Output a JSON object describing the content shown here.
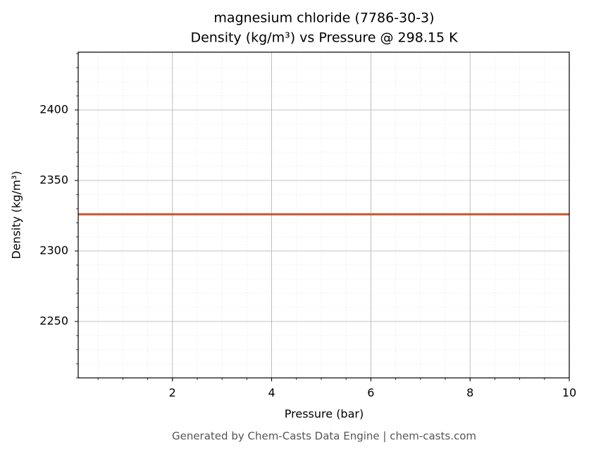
{
  "chart_data": {
    "type": "line",
    "title": "magnesium chloride (7786-30-3)",
    "subtitle": "Density (kg/m³) vs Pressure @ 298.15 K",
    "x_label": "Pressure (bar)",
    "y_label": "Density (kg/m³)",
    "footer": "Generated by Chem-Casts Data Engine | chem-casts.com",
    "x": [
      0.1,
      10
    ],
    "series": [
      {
        "name": "Density",
        "color": "#c8522a",
        "values": [
          2326,
          2326
        ]
      }
    ],
    "xlim": [
      0.1,
      10
    ],
    "xticks": [
      2,
      4,
      6,
      8,
      10
    ],
    "ylim": [
      2210,
      2441
    ],
    "yticks": [
      2250,
      2300,
      2350,
      2400
    ],
    "grid": true,
    "minor_grid": true
  }
}
